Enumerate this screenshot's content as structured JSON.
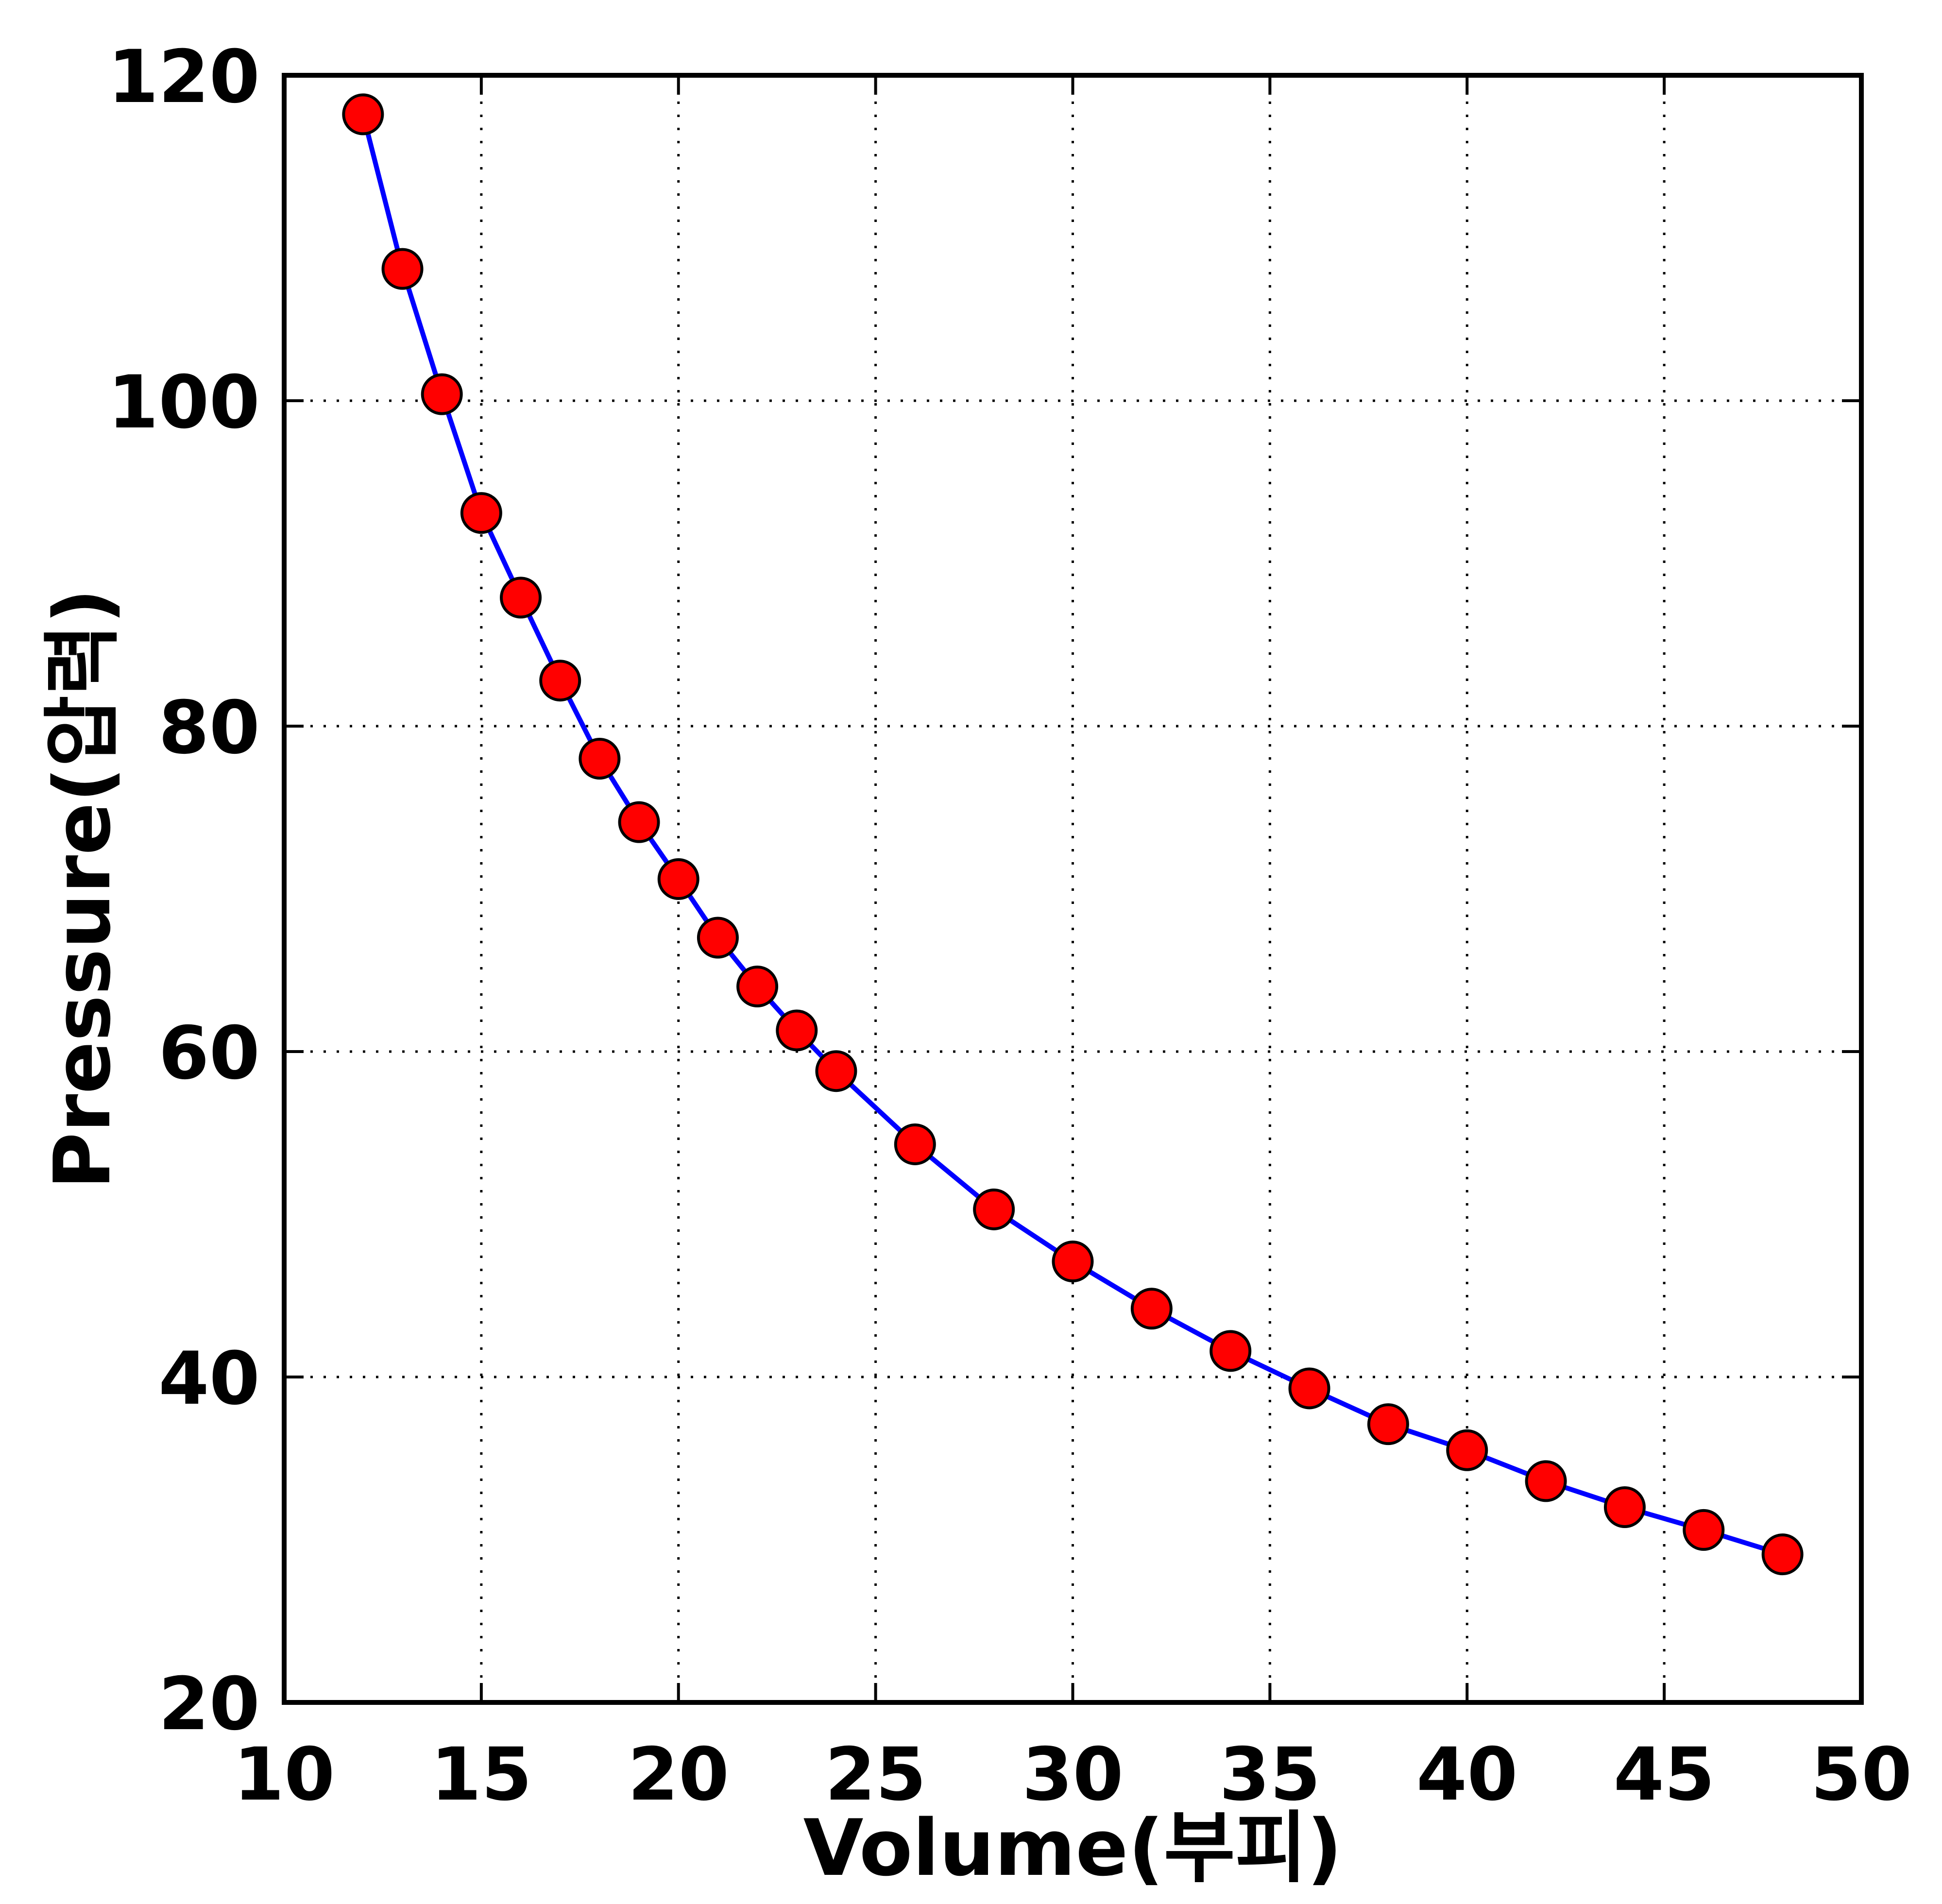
{
  "chart_data": {
    "type": "line",
    "xlabel": "Volume(부피)",
    "ylabel": "Pressure(압력)",
    "xlim": [
      10,
      50
    ],
    "ylim": [
      20,
      120
    ],
    "xticks": [
      "10",
      "15",
      "20",
      "25",
      "30",
      "35",
      "40",
      "45",
      "50"
    ],
    "yticks": [
      "20",
      "40",
      "60",
      "80",
      "100",
      "120"
    ],
    "grid": true,
    "grid_style": "dotted",
    "line_color": "#0000ff",
    "marker_color": "#ff0000",
    "marker_edge_color": "#000000",
    "series": [
      {
        "x": [
          12,
          13,
          14,
          15,
          16,
          17,
          18,
          19,
          20,
          21,
          22,
          23,
          24,
          26,
          28,
          30,
          32,
          34,
          36,
          38,
          40,
          42,
          44,
          46,
          48
        ],
        "y": [
          117.6,
          108.1,
          100.4,
          93.1,
          87.9,
          82.8,
          78.0,
          74.1,
          70.6,
          67.0,
          64.0,
          61.3,
          58.8,
          54.3,
          50.3,
          47.1,
          44.2,
          41.6,
          39.3,
          37.1,
          35.5,
          33.6,
          32.0,
          30.6,
          29.1
        ]
      }
    ]
  }
}
